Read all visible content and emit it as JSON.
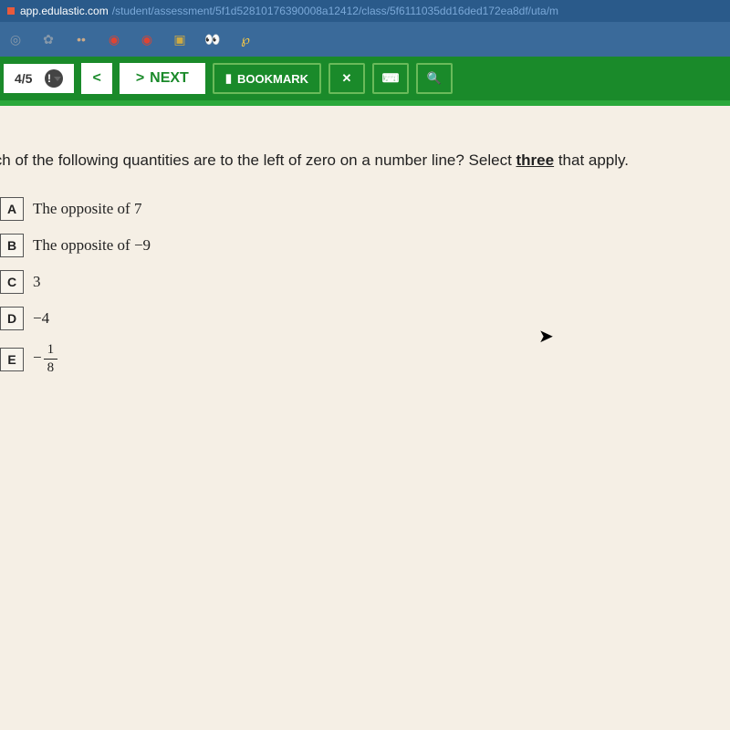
{
  "browser": {
    "domain": "app.edulastic.com",
    "path": "/student/assessment/5f1d52810176390008a12412/class/5f6111035dd16ded172ea8df/uta/m"
  },
  "extensions": {
    "icons": [
      "◎",
      "✿",
      "••",
      "◉",
      "◉",
      "▣",
      "👀",
      "℘"
    ],
    "colors": [
      "#8899aa",
      "#8899aa",
      "#ccaa88",
      "#dd4433",
      "#dd4433",
      "#ccaa44",
      "#88cc88",
      "#ffcc44"
    ]
  },
  "toolbar": {
    "progress": "4/5",
    "prev_label": "<",
    "next_arrow": ">",
    "next_label": "NEXT",
    "bookmark_label": "BOOKMARK",
    "bookmark_icon": "▮",
    "close_icon": "✕",
    "calc_icon": "⌨",
    "search_icon": "🔍"
  },
  "question": {
    "prefix": "ich of the following quantities are to the left of zero on a number line? Select ",
    "emphasis": "three",
    "suffix": " that apply."
  },
  "answers": [
    {
      "letter": "A",
      "text": "The opposite of 7",
      "type": "text"
    },
    {
      "letter": "B",
      "text": "The opposite of −9",
      "type": "text"
    },
    {
      "letter": "C",
      "text": "3",
      "type": "math"
    },
    {
      "letter": "D",
      "text": "−4",
      "type": "math"
    },
    {
      "letter": "E",
      "type": "fraction",
      "neg": "−",
      "num": "1",
      "den": "8"
    }
  ],
  "colors": {
    "browser_bg": "#2a5a8a",
    "ext_bg": "#3a6a9a",
    "toolbar_bg": "#1a8a2a",
    "content_bg": "#f5efe5"
  }
}
